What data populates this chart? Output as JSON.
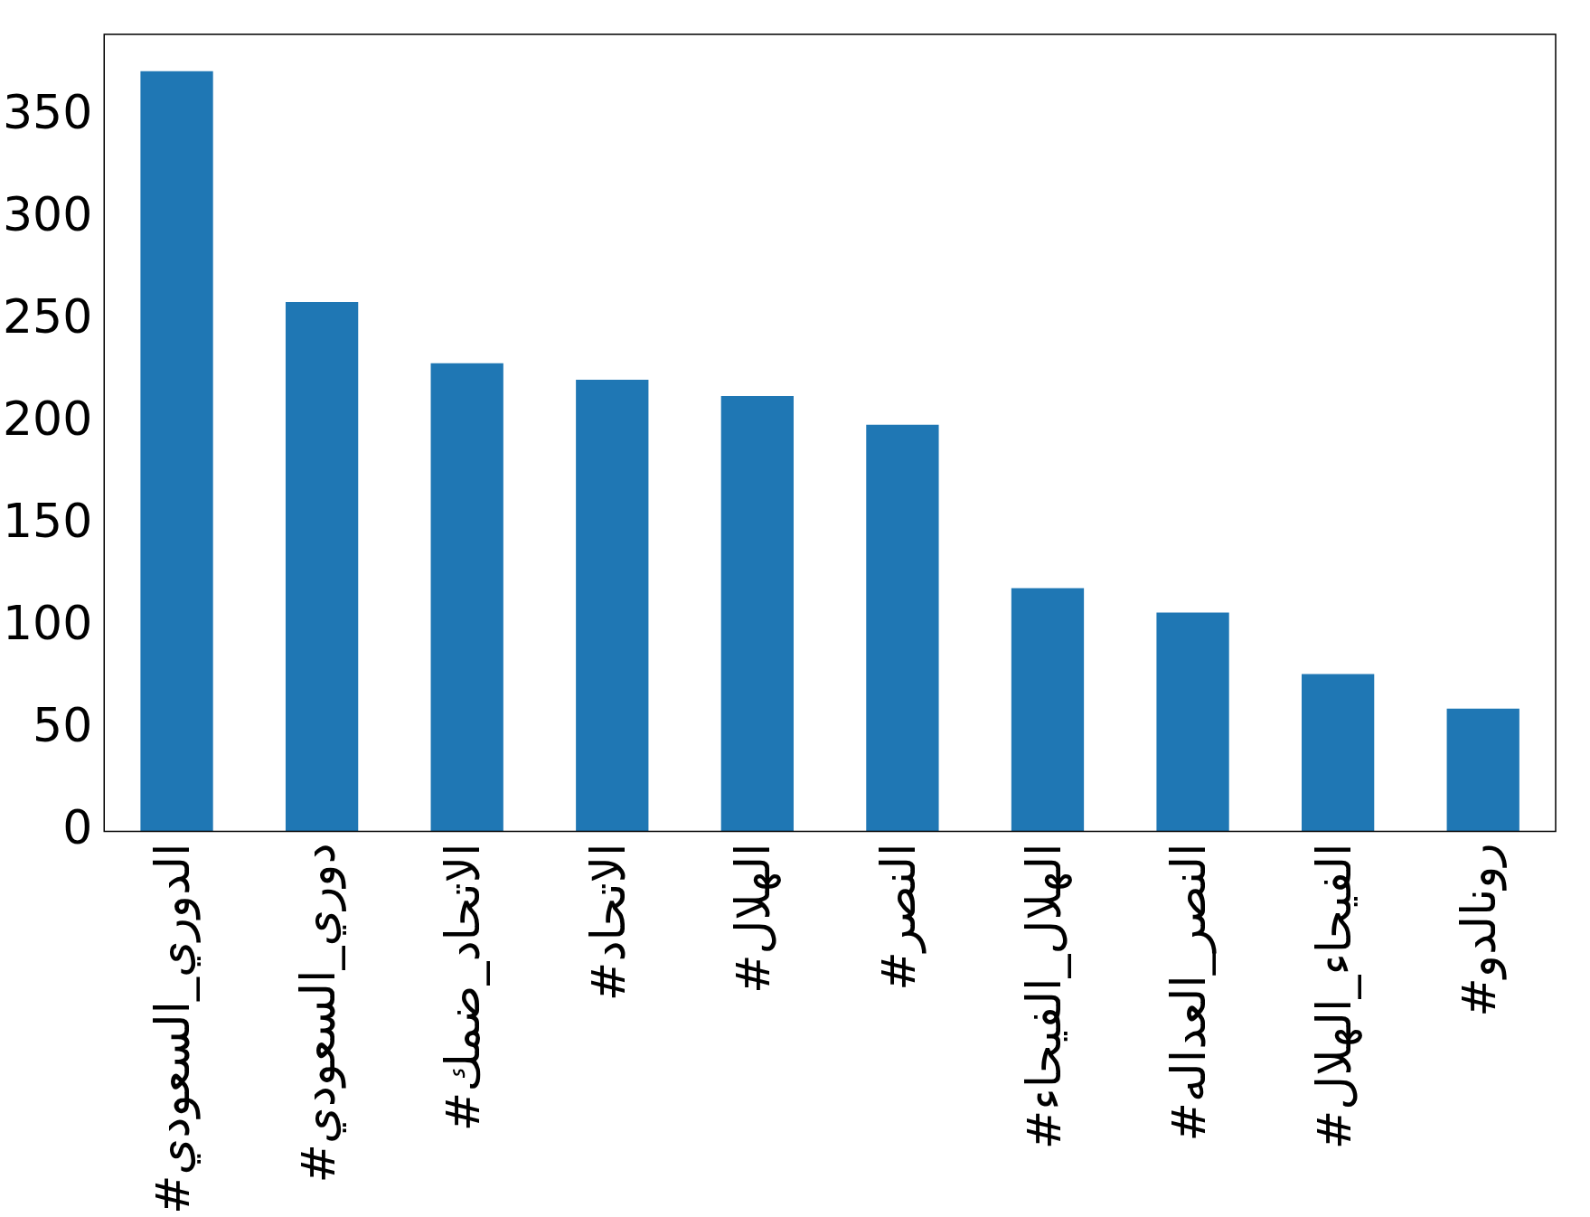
{
  "chart_data": {
    "type": "bar",
    "categories": [
      "#الدوري_السعودي",
      "#دوري_السعودي",
      "#الاتحاد_ضمك",
      "#الاتحاد",
      "#الهلال",
      "#النصر",
      "#الهلال_الفيحاء",
      "#النصر_العداله",
      "#الفيحاء_الهلال",
      "#رونالدو"
    ],
    "values": [
      372,
      259,
      229,
      221,
      213,
      199,
      119,
      107,
      77,
      60
    ],
    "color": "#1f77b4",
    "ylim": [
      0,
      390
    ],
    "yticks": [
      0,
      50,
      100,
      150,
      200,
      250,
      300,
      350
    ],
    "grid": false,
    "legend": false
  }
}
